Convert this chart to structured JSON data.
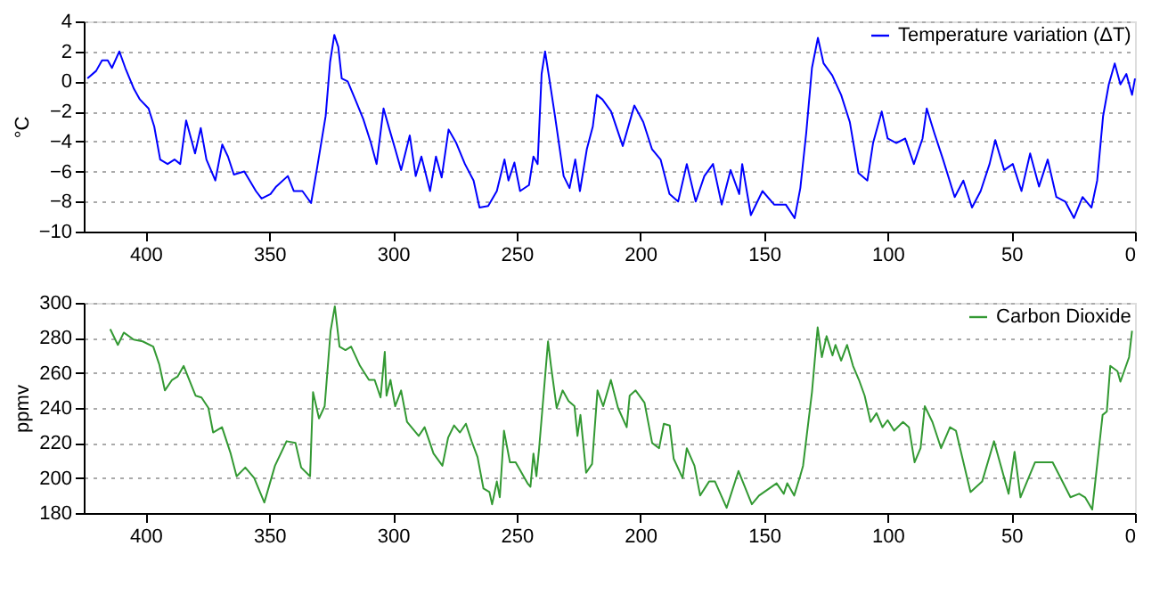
{
  "chart_data": [
    {
      "type": "line",
      "ylabel": "°C",
      "xlim": [
        425,
        0
      ],
      "xticks": [
        400,
        350,
        300,
        250,
        200,
        150,
        100,
        50,
        0
      ],
      "ylim": [
        -10,
        4
      ],
      "yticks": [
        -10,
        -8,
        -6,
        -4,
        -2,
        0,
        2,
        4
      ],
      "grid": "y",
      "legend": "top right",
      "line_style": "solid",
      "marker": "none",
      "series": [
        {
          "name": "Temperature variation (ΔT)",
          "color": "#0000ff",
          "x": [
            423.5,
            420,
            417.6,
            415.3,
            413.6,
            410.6,
            408.2,
            404.7,
            402.3,
            398.8,
            396.5,
            394.1,
            391.1,
            388.3,
            386,
            383.6,
            380,
            377.7,
            375.4,
            371.8,
            369,
            366.7,
            364.3,
            360.1,
            355.4,
            353.1,
            349.5,
            347.2,
            342.5,
            340.1,
            336.6,
            333.1,
            330.8,
            327.2,
            325.4,
            323.7,
            322.1,
            320.7,
            318.3,
            315.5,
            312,
            308.9,
            306.6,
            303.8,
            301.4,
            299.1,
            296.7,
            293.2,
            290.8,
            288.5,
            285,
            282.6,
            280.3,
            277.5,
            274.4,
            270.9,
            267.4,
            265,
            261.5,
            258,
            254.9,
            253.3,
            250.9,
            248.6,
            245,
            243.2,
            241.5,
            239.9,
            238.5,
            236.8,
            234.5,
            231,
            228.6,
            226.3,
            224.4,
            221.6,
            219.2,
            217.6,
            215.3,
            211.8,
            207.1,
            202.4,
            198.8,
            195.3,
            191.8,
            188.2,
            184.7,
            181.2,
            177.6,
            174.1,
            170.6,
            167.1,
            163.5,
            160,
            158.8,
            155.3,
            150.6,
            145.9,
            141.2,
            137.6,
            135.3,
            132.9,
            130.6,
            128.2,
            125.9,
            122.4,
            118.8,
            115.3,
            111.8,
            108.2,
            105.9,
            102.4,
            100,
            96.5,
            92.9,
            89.4,
            85.9,
            84.2,
            81.2,
            77.6,
            72.9,
            69.4,
            65.9,
            62.4,
            58.8,
            56.5,
            52.9,
            49.4,
            45.9,
            42.4,
            38.8,
            35.3,
            31.8,
            28.2,
            24.7,
            21.2,
            17.6,
            15.3,
            12.9,
            10.6,
            8.2,
            5.9,
            3.5,
            1.2,
            0
          ],
          "values": [
            0.2,
            0.7,
            1.4,
            1.4,
            0.9,
            2.0,
            0.9,
            -0.5,
            -1.2,
            -1.8,
            -3.0,
            -5.2,
            -5.5,
            -5.2,
            -5.5,
            -2.6,
            -4.8,
            -3.1,
            -5.2,
            -6.6,
            -4.2,
            -5,
            -6.2,
            -6,
            -7.3,
            -7.8,
            -7.5,
            -7,
            -6.3,
            -7.3,
            -7.3,
            -8.1,
            -5.9,
            -2.3,
            1.3,
            3.1,
            2.3,
            0.2,
            0,
            -1.1,
            -2.5,
            -4.1,
            -5.5,
            -1.8,
            -3.2,
            -4.5,
            -5.9,
            -3.6,
            -6.3,
            -5,
            -7.3,
            -5,
            -6.4,
            -3.2,
            -4.1,
            -5.5,
            -6.6,
            -8.4,
            -8.3,
            -7.3,
            -5.2,
            -6.6,
            -5.4,
            -7.3,
            -6.9,
            -5,
            -5.5,
            0.5,
            2.0,
            0.2,
            -2.3,
            -6.3,
            -7.1,
            -5.2,
            -7.3,
            -4.5,
            -3,
            -0.9,
            -1.2,
            -2,
            -4.3,
            -1.6,
            -2.7,
            -4.5,
            -5.2,
            -7.5,
            -8,
            -5.5,
            -8,
            -6.3,
            -5.5,
            -8.2,
            -5.9,
            -7.5,
            -5.5,
            -8.9,
            -7.3,
            -8.2,
            -8.2,
            -9.1,
            -7.1,
            -3.4,
            0.9,
            2.9,
            1.2,
            0.4,
            -0.9,
            -2.7,
            -6.1,
            -6.6,
            -4.1,
            -2,
            -3.8,
            -4.1,
            -3.8,
            -5.5,
            -3.8,
            -1.8,
            -3.4,
            -5.2,
            -7.7,
            -6.6,
            -8.4,
            -7.3,
            -5.5,
            -3.9,
            -5.9,
            -5.5,
            -7.3,
            -4.8,
            -7,
            -5.2,
            -7.7,
            -8,
            -9.1,
            -7.7,
            -8.4,
            -6.6,
            -2.3,
            -0.2,
            1.2,
            -0.2,
            0.5,
            -0.9,
            0.2
          ]
        }
      ]
    },
    {
      "type": "line",
      "ylabel": "ppmv",
      "xlim": [
        425,
        0
      ],
      "xticks": [
        400,
        350,
        300,
        250,
        200,
        150,
        100,
        50,
        0
      ],
      "ylim": [
        180,
        300
      ],
      "yticks": [
        180,
        200,
        220,
        240,
        260,
        280,
        300
      ],
      "grid": "y",
      "legend": "top right",
      "line_style": "solid",
      "marker": "none",
      "series": [
        {
          "name": "Carbon Dioxide",
          "color": "#339933",
          "x": [
            414.3,
            411.2,
            408.8,
            404.8,
            401.2,
            396.9,
            394.5,
            392.2,
            389.3,
            387,
            384.6,
            379.8,
            377.4,
            374.6,
            372.7,
            369.1,
            365.6,
            363.2,
            359.7,
            356.1,
            352,
            347.7,
            343,
            339.4,
            337.1,
            333.5,
            332.3,
            329.9,
            327.6,
            325.2,
            323.5,
            321.6,
            319.2,
            316.9,
            313.3,
            309.7,
            307.4,
            305,
            303.3,
            302.6,
            301,
            299.1,
            296.7,
            294.3,
            289.6,
            287.2,
            283.6,
            280,
            277.7,
            275.3,
            272.9,
            270.5,
            268.2,
            265.8,
            263.4,
            261,
            259.9,
            258,
            256.8,
            255.1,
            252.7,
            250.4,
            248,
            245.6,
            244.4,
            243.2,
            242,
            240.9,
            237.3,
            236.1,
            233.8,
            231.4,
            229,
            226.6,
            225.4,
            224.2,
            221.9,
            219.5,
            217.3,
            215,
            211.9,
            209,
            205.5,
            204.3,
            201.9,
            198.3,
            195.2,
            192.4,
            190.5,
            188.1,
            186.5,
            182.9,
            181.2,
            178.1,
            175.8,
            172.2,
            169.8,
            165.1,
            160.3,
            154.9,
            152,
            144.9,
            142,
            140.6,
            137.8,
            135.4,
            134.2,
            130.6,
            128.3,
            126.6,
            124.7,
            122.3,
            121.1,
            118.8,
            116.4,
            114,
            111.6,
            109.3,
            106.9,
            104.5,
            102.1,
            100,
            97.4,
            93.8,
            91.4,
            89.1,
            86.7,
            85,
            81.9,
            78.4,
            74.8,
            72.4,
            66.5,
            61.8,
            57,
            51.1,
            48.7,
            46.3,
            40.4,
            33.3,
            26.1,
            22.6,
            20.2,
            17.3,
            13.1,
            11.4,
            10,
            7.1,
            5.9,
            2.4,
            1.2
          ],
          "values": [
            285,
            276,
            283,
            279,
            278,
            275,
            265,
            250,
            256,
            258,
            264,
            247,
            246,
            240,
            226,
            229,
            214,
            201,
            206,
            200,
            186,
            207,
            221,
            220,
            206,
            201,
            249,
            234,
            241,
            284,
            298,
            275,
            273,
            275,
            264,
            256,
            256,
            246,
            272,
            247,
            256,
            241,
            250,
            232,
            224,
            229,
            214,
            207,
            223,
            230,
            226,
            231,
            221,
            212,
            194,
            192,
            185,
            198,
            189,
            227,
            209,
            209,
            203,
            197,
            195,
            214,
            201,
            217,
            278,
            264,
            240,
            250,
            244,
            241,
            224,
            236,
            203,
            208,
            250,
            241,
            256,
            240,
            229,
            247,
            250,
            243,
            220,
            217,
            231,
            230,
            211,
            200,
            217,
            207,
            190,
            198,
            198,
            183,
            204,
            185,
            190,
            197,
            191,
            197,
            190,
            201,
            207,
            249,
            286,
            269,
            281,
            270,
            276,
            267,
            276,
            264,
            256,
            247,
            232,
            237,
            229,
            233,
            227,
            232,
            229,
            209,
            217,
            241,
            232,
            217,
            229,
            227,
            192,
            198,
            221,
            191,
            215,
            189,
            209,
            209,
            189,
            191,
            189,
            182,
            236,
            238,
            264,
            261,
            255,
            269,
            284
          ]
        }
      ]
    }
  ]
}
